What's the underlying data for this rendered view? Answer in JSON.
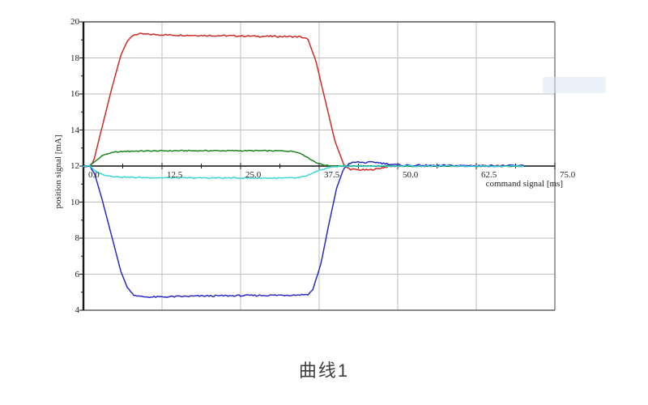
{
  "caption": "曲线1",
  "chart_data": {
    "type": "line",
    "title": "",
    "xlabel": "command signal [ms]",
    "ylabel": "position signal [mA]",
    "xlim": [
      0,
      75
    ],
    "ylim": [
      4,
      20
    ],
    "data_end_x": 70,
    "grid": true,
    "grid_color": "#bdbdbd",
    "axis_color": "#161616",
    "baseline_color": "#4a4a4a",
    "frame_top_color": "#333333",
    "frame_right_color": "#777777",
    "frame_bottom_color": "#444444",
    "tick_color": "#222222",
    "baseline_y": 12,
    "x_minor_step": 6.25,
    "y_minor_step": 1,
    "x_ticks": [
      {
        "v": 0,
        "label": "0.0"
      },
      {
        "v": 12.5,
        "label": "12.5"
      },
      {
        "v": 25,
        "label": "25.0"
      },
      {
        "v": 37.5,
        "label": "37.5"
      },
      {
        "v": 50,
        "label": "50.0"
      },
      {
        "v": 62.5,
        "label": "62.5"
      },
      {
        "v": 75,
        "label": "75.0"
      }
    ],
    "y_ticks": [
      {
        "v": 20,
        "label": "20"
      },
      {
        "v": 18,
        "label": "18"
      },
      {
        "v": 16,
        "label": "16"
      },
      {
        "v": 14,
        "label": "14"
      },
      {
        "v": 12,
        "label": "12"
      },
      {
        "v": 10,
        "label": "10"
      },
      {
        "v": 8,
        "label": "8"
      },
      {
        "v": 6,
        "label": "6"
      },
      {
        "v": 4,
        "label": "4"
      }
    ],
    "series": [
      {
        "name": "red-trace",
        "color": "#cf2b27",
        "noise": 0.045,
        "points": [
          [
            0,
            12
          ],
          [
            1,
            12
          ],
          [
            1.6,
            12.25
          ],
          [
            3,
            14.2
          ],
          [
            4.5,
            16.3
          ],
          [
            6,
            18.2
          ],
          [
            7,
            18.95
          ],
          [
            8,
            19.28
          ],
          [
            9,
            19.33
          ],
          [
            11,
            19.3
          ],
          [
            14,
            19.27
          ],
          [
            18,
            19.25
          ],
          [
            23,
            19.23
          ],
          [
            28,
            19.2
          ],
          [
            32,
            19.19
          ],
          [
            34.5,
            19.17
          ],
          [
            35.7,
            19.05
          ],
          [
            37,
            17.8
          ],
          [
            38.5,
            15.6
          ],
          [
            40,
            13.4
          ],
          [
            41.5,
            12.0
          ],
          [
            42.5,
            11.82
          ],
          [
            44,
            11.79
          ],
          [
            45.5,
            11.78
          ],
          [
            46.8,
            11.85
          ],
          [
            48,
            11.94
          ],
          [
            49.5,
            12.0
          ],
          [
            52,
            11.99
          ],
          [
            56,
            12.0
          ],
          [
            60,
            12.0
          ],
          [
            65,
            12.0
          ],
          [
            70,
            12.0
          ]
        ]
      },
      {
        "name": "green-trace",
        "color": "#1f821f",
        "noise": 0.03,
        "points": [
          [
            0,
            12
          ],
          [
            1,
            12.01
          ],
          [
            2,
            12.3
          ],
          [
            3,
            12.58
          ],
          [
            4,
            12.7
          ],
          [
            5,
            12.77
          ],
          [
            6.5,
            12.81
          ],
          [
            8,
            12.83
          ],
          [
            11,
            12.84
          ],
          [
            16,
            12.85
          ],
          [
            22,
            12.85
          ],
          [
            28,
            12.85
          ],
          [
            32,
            12.84
          ],
          [
            33.8,
            12.8
          ],
          [
            35,
            12.62
          ],
          [
            36,
            12.4
          ],
          [
            37,
            12.2
          ],
          [
            38,
            12.08
          ],
          [
            39,
            12.02
          ],
          [
            40.5,
            12.0
          ],
          [
            44,
            12.0
          ],
          [
            48,
            12.0
          ],
          [
            54,
            12.0
          ],
          [
            60,
            12.0
          ],
          [
            65,
            12.0
          ],
          [
            70,
            12.0
          ]
        ]
      },
      {
        "name": "blue-trace",
        "color": "#2b2bc4",
        "noise": 0.045,
        "points": [
          [
            0,
            12
          ],
          [
            1,
            12
          ],
          [
            1.8,
            11.55
          ],
          [
            3,
            10.1
          ],
          [
            4.5,
            8.1
          ],
          [
            6,
            6.1
          ],
          [
            7,
            5.25
          ],
          [
            8,
            4.85
          ],
          [
            9,
            4.76
          ],
          [
            11,
            4.73
          ],
          [
            14,
            4.75
          ],
          [
            19,
            4.79
          ],
          [
            25,
            4.81
          ],
          [
            30,
            4.83
          ],
          [
            34,
            4.85
          ],
          [
            35.8,
            4.88
          ],
          [
            36.5,
            5.15
          ],
          [
            37.8,
            6.6
          ],
          [
            39,
            8.7
          ],
          [
            40.3,
            10.8
          ],
          [
            41.4,
            11.85
          ],
          [
            42.3,
            12.15
          ],
          [
            43.5,
            12.22
          ],
          [
            45,
            12.19
          ],
          [
            46.3,
            12.22
          ],
          [
            47.5,
            12.16
          ],
          [
            48.8,
            12.1
          ],
          [
            50,
            12.06
          ],
          [
            52,
            12.04
          ],
          [
            55,
            12.03
          ],
          [
            58,
            12.03
          ],
          [
            62,
            12.02
          ],
          [
            66,
            12.02
          ],
          [
            70,
            12.02
          ]
        ]
      },
      {
        "name": "cyan-trace",
        "color": "#3bd6d6",
        "noise": 0.035,
        "points": [
          [
            0,
            12
          ],
          [
            1,
            12
          ],
          [
            2,
            11.7
          ],
          [
            3,
            11.54
          ],
          [
            4,
            11.46
          ],
          [
            5.5,
            11.4
          ],
          [
            8,
            11.37
          ],
          [
            12,
            11.35
          ],
          [
            18,
            11.34
          ],
          [
            25,
            11.34
          ],
          [
            31,
            11.33
          ],
          [
            34,
            11.34
          ],
          [
            35.2,
            11.42
          ],
          [
            36.2,
            11.55
          ],
          [
            37.5,
            11.75
          ],
          [
            38.8,
            11.9
          ],
          [
            40,
            11.97
          ],
          [
            41.5,
            12.0
          ],
          [
            45,
            12.0
          ],
          [
            50,
            12.0
          ],
          [
            55,
            12.0
          ],
          [
            60,
            12.0
          ],
          [
            65,
            12.0
          ],
          [
            70,
            12.0
          ]
        ]
      }
    ]
  }
}
